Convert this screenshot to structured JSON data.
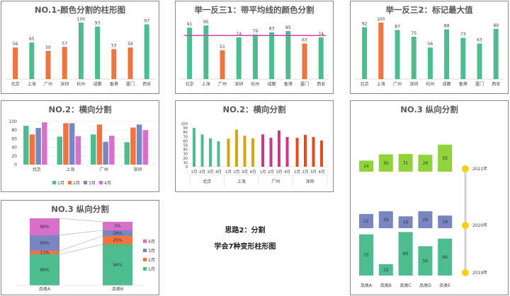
{
  "colors": {
    "green": "#4dbd8f",
    "orange": "#f0743f",
    "purple": "#7a86c2",
    "pink": "#d870c9",
    "yellow": "#d3a512",
    "magenta": "#c8368e",
    "red": "#ea4a1b",
    "lime": "#91d33a",
    "sun": "#f6d016"
  },
  "charts": [
    {
      "type": "bar",
      "title": "NO.1-颜色分割的柱形图",
      "categories": [
        "北京",
        "上海",
        "广州",
        "深圳",
        "杭州",
        "成都",
        "香港",
        "厦门",
        "西安"
      ],
      "values": [
        56,
        65,
        50,
        57,
        100,
        93,
        53,
        56,
        97
      ],
      "rule": "greater than 60 green, otherwise orange"
    },
    {
      "type": "bar",
      "title": "举一反三1：带平均线的颜色分割",
      "categories": [
        "北京",
        "上海",
        "广州",
        "深圳",
        "杭州",
        "成都",
        "香港",
        "厦门",
        "西安"
      ],
      "values": [
        91,
        95,
        51,
        74,
        79,
        83,
        85,
        63,
        74
      ],
      "average_line": 77.2
    },
    {
      "type": "bar",
      "title": "举一反三2：标记最大值",
      "categories": [
        "北京",
        "上海",
        "广州",
        "深圳",
        "杭州",
        "成都",
        "香港",
        "厦门",
        "西安"
      ],
      "values": [
        92,
        100,
        87,
        75,
        56,
        88,
        73,
        63,
        89
      ]
    },
    {
      "type": "bar",
      "title": "NO.2：横向分割",
      "categories": [
        "北京",
        "上海",
        "广州",
        "深圳"
      ],
      "series": [
        {
          "name": "1月",
          "values": [
            90,
            65,
            70,
            52
          ]
        },
        {
          "name": "2月",
          "values": [
            70,
            96,
            93,
            86
          ]
        },
        {
          "name": "3月",
          "values": [
            85,
            96,
            53,
            93
          ]
        },
        {
          "name": "4月",
          "values": [
            98,
            66,
            67,
            80
          ]
        }
      ],
      "ylim": [
        0,
        100
      ],
      "yticks": [
        "0",
        "20",
        "40",
        "60",
        "80",
        "100"
      ]
    },
    {
      "type": "bar",
      "title": "NO.2：横向分割",
      "categories": [
        "北京",
        "上海",
        "广州",
        "深圳"
      ],
      "months": [
        "1月",
        "2月",
        "3月",
        "4月"
      ],
      "values": [
        [
          90,
          75,
          66,
          59
        ],
        [
          65,
          86,
          72,
          66
        ],
        [
          75,
          67,
          84,
          69
        ],
        [
          67,
          74,
          69,
          61
        ]
      ],
      "ylim": [
        0,
        100
      ],
      "yticks": [
        "0",
        "10",
        "20",
        "30",
        "40",
        "50",
        "60",
        "70",
        "80",
        "90",
        "100"
      ]
    },
    {
      "type": "bar",
      "title": "NO.3 纵向分割",
      "categories": [
        "品类A",
        "品类B",
        "品类C",
        "品类D",
        "品类E"
      ],
      "series": [
        {
          "name": "2019年",
          "values": [
            75,
            12,
            80,
            50,
            66
          ]
        },
        {
          "name": "2020年",
          "values": [
            22,
            29,
            16,
            29,
            18
          ]
        },
        {
          "name": "2021年",
          "values": [
            14,
            30,
            31,
            29,
            55
          ]
        }
      ]
    },
    {
      "type": "bar",
      "title": "NO.3 纵向分割",
      "categories": [
        "品类A",
        "品类B"
      ],
      "series": [
        {
          "name": "1月",
          "values": [
            99,
            94
          ]
        },
        {
          "name": "2月",
          "values": [
            11,
            25
          ]
        },
        {
          "name": "3月",
          "values": [
            69,
            28
          ]
        },
        {
          "name": "4月",
          "values": [
            89,
            3
          ]
        }
      ],
      "percent_labels": [
        [
          "99%",
          "11%",
          "69%",
          "89%"
        ],
        [
          "94%",
          "25%",
          "28%",
          "3%"
        ]
      ]
    }
  ],
  "footer": {
    "line1": "思路2：分割",
    "line2": "学会7种变形柱形图"
  }
}
